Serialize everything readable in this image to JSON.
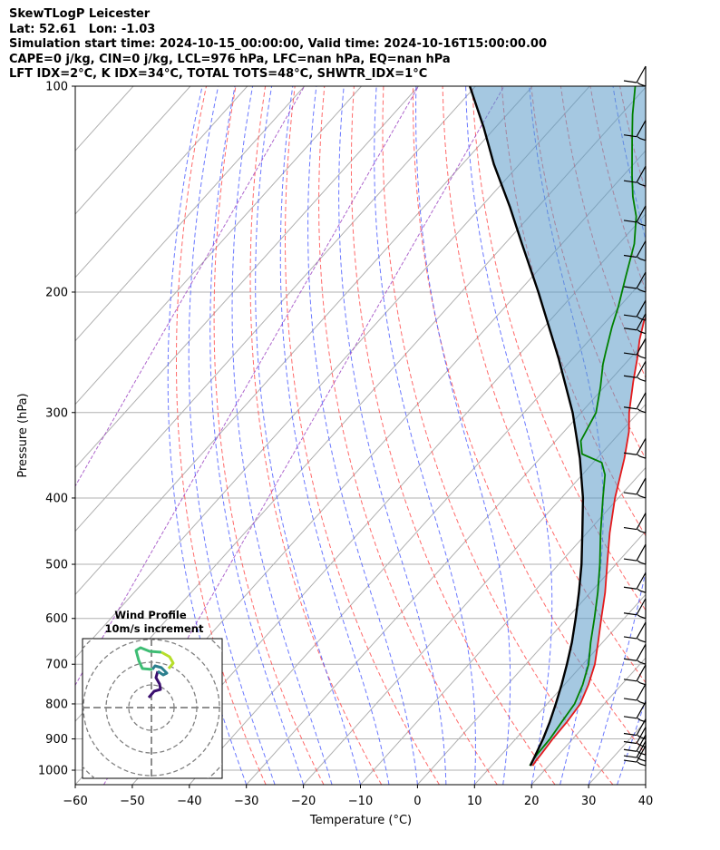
{
  "header": {
    "line1": "SkewTLogP Leicester",
    "line2": "Lat: 52.61   Lon: -1.03",
    "line3": "Simulation start time: 2024-10-15_00:00:00, Valid time: 2024-10-16T15:00:00.00",
    "line4": "CAPE=0 j/kg, CIN=0 j/kg, LCL=976 hPa, LFC=nan hPa, EQ=nan hPa",
    "line5": "LFT IDX=2°C, K IDX=34°C, TOTAL TOTS=48°C, SHWTR_IDX=1°C"
  },
  "chart_data": {
    "type": "skewt-logp",
    "xlabel": "Temperature (°C)",
    "ylabel": "Pressure (hPa)",
    "xlim": [
      -60,
      40
    ],
    "ylim": [
      1050,
      100
    ],
    "x_ticks": [
      "−60",
      "−50",
      "−40",
      "−30",
      "−20",
      "−10",
      "0",
      "10",
      "20",
      "30",
      "40"
    ],
    "y_ticks": [
      "100",
      "200",
      "300",
      "400",
      "500",
      "600",
      "700",
      "800",
      "900",
      "1000"
    ],
    "y_tick_values": [
      100,
      200,
      300,
      400,
      500,
      600,
      700,
      800,
      900,
      1000
    ],
    "log_scale_pressure": true,
    "grid": true,
    "series": [
      {
        "name": "",
        "color": "#e41a1c",
        "points": [
          [
            985,
            17.2
          ],
          [
            970,
            17.0
          ],
          [
            950,
            16.9
          ],
          [
            925,
            16.7
          ],
          [
            900,
            16.5
          ],
          [
            850,
            16.3
          ],
          [
            800,
            15.8
          ],
          [
            750,
            14.2
          ],
          [
            700,
            12.1
          ],
          [
            650,
            9.2
          ],
          [
            600,
            6.0
          ],
          [
            550,
            2.6
          ],
          [
            500,
            -1.5
          ],
          [
            450,
            -6.0
          ],
          [
            400,
            -10.6
          ],
          [
            350,
            -15.2
          ],
          [
            320,
            -18.6
          ],
          [
            300,
            -21.6
          ],
          [
            270,
            -25.8
          ],
          [
            250,
            -28.7
          ],
          [
            235,
            -31.2
          ],
          [
            220,
            -33.5
          ],
          [
            200,
            -34.7
          ],
          [
            180,
            -37.2
          ],
          [
            160,
            -40.0
          ],
          [
            150,
            -41.5
          ],
          [
            140,
            -44.2
          ],
          [
            130,
            -46.8
          ],
          [
            120,
            -49.5
          ],
          [
            110,
            -51.8
          ],
          [
            100,
            -56.3
          ]
        ]
      },
      {
        "name": "",
        "color": "#008000",
        "points": [
          [
            985,
            16.7
          ],
          [
            970,
            16.4
          ],
          [
            950,
            16.2
          ],
          [
            925,
            16.1
          ],
          [
            900,
            16.0
          ],
          [
            850,
            15.4
          ],
          [
            800,
            14.8
          ],
          [
            750,
            13.2
          ],
          [
            700,
            11.0
          ],
          [
            650,
            7.9
          ],
          [
            600,
            4.8
          ],
          [
            550,
            1.3
          ],
          [
            500,
            -2.8
          ],
          [
            450,
            -7.6
          ],
          [
            400,
            -12.7
          ],
          [
            370,
            -16.0
          ],
          [
            355,
            -18.5
          ],
          [
            345,
            -23.3
          ],
          [
            330,
            -25.6
          ],
          [
            300,
            -27.4
          ],
          [
            275,
            -30.7
          ],
          [
            255,
            -33.8
          ],
          [
            245,
            -35.2
          ],
          [
            225,
            -38.1
          ],
          [
            210,
            -40.2
          ],
          [
            190,
            -43.6
          ],
          [
            170,
            -47.3
          ],
          [
            155,
            -51.3
          ],
          [
            145,
            -55.0
          ],
          [
            135,
            -58.5
          ],
          [
            120,
            -64.0
          ],
          [
            110,
            -68.0
          ],
          [
            100,
            -72.0
          ]
        ]
      },
      {
        "name": "",
        "color": "#000000",
        "points": [
          [
            985,
            16.8
          ],
          [
            950,
            16.0
          ],
          [
            900,
            14.8
          ],
          [
            850,
            13.3
          ],
          [
            800,
            11.5
          ],
          [
            750,
            9.5
          ],
          [
            700,
            7.2
          ],
          [
            650,
            4.6
          ],
          [
            600,
            1.5
          ],
          [
            550,
            -2.0
          ],
          [
            500,
            -6.0
          ],
          [
            450,
            -10.8
          ],
          [
            400,
            -16.2
          ],
          [
            350,
            -23.0
          ],
          [
            300,
            -31.5
          ],
          [
            250,
            -42.5
          ],
          [
            200,
            -56.5
          ],
          [
            170,
            -67.0
          ],
          [
            150,
            -75.0
          ],
          [
            130,
            -84.5
          ],
          [
            115,
            -92.0
          ],
          [
            100,
            -101.0
          ]
        ]
      }
    ],
    "wind_barbs_pressure_levels": [
      985,
      970,
      950,
      925,
      900,
      850,
      800,
      750,
      700,
      650,
      600,
      550,
      500,
      450,
      400,
      350,
      300,
      270,
      250,
      230,
      220,
      200,
      180,
      160,
      140,
      120,
      100
    ],
    "inset": {
      "title": "Wind Profile",
      "subtitle": "10m/s increment"
    }
  }
}
